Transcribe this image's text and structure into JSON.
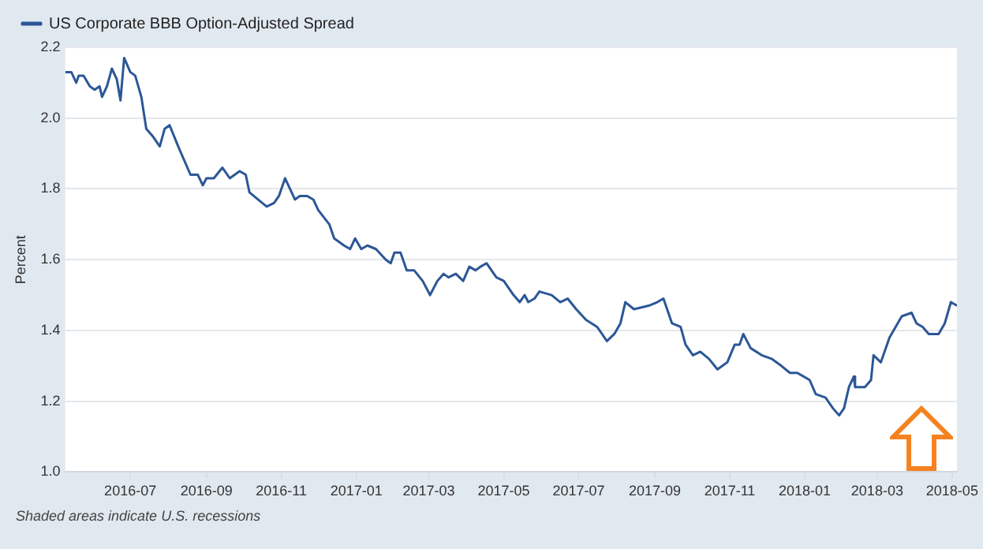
{
  "chart_data": {
    "type": "line",
    "ylabel": "Percent",
    "legend": "top left",
    "grid": "y",
    "annotations": [
      "Shaded areas indicate U.S. recessions"
    ],
    "xlim": [
      "2016-05-09",
      "2018-05-05"
    ],
    "xticks": [
      "2016-07",
      "2016-09",
      "2016-11",
      "2017-01",
      "2017-03",
      "2017-05",
      "2017-07",
      "2017-09",
      "2017-11",
      "2018-01",
      "2018-03",
      "2018-05"
    ],
    "ylim": [
      1.0,
      2.2
    ],
    "yticks": [
      {
        "value": 1,
        "label": "1.0"
      },
      1.2,
      1.4,
      1.6,
      1.8,
      {
        "value": 2,
        "label": "2.0"
      },
      2.2
    ],
    "x": [
      "2016-05-09",
      "2016-05-14",
      "2016-05-18",
      "2016-05-20",
      "2016-05-24",
      "2016-05-29",
      "2016-06-02",
      "2016-06-06",
      "2016-06-08",
      "2016-06-12",
      "2016-06-16",
      "2016-06-20",
      "2016-06-23",
      "2016-06-26",
      "2016-07-01",
      "2016-07-05",
      "2016-07-10",
      "2016-07-14",
      "2016-07-19",
      "2016-07-25",
      "2016-07-29",
      "2016-08-02",
      "2016-08-09",
      "2016-08-19",
      "2016-08-25",
      "2016-08-29",
      "2016-09-01",
      "2016-09-07",
      "2016-09-14",
      "2016-09-20",
      "2016-09-28",
      "2016-10-03",
      "2016-10-06",
      "2016-10-13",
      "2016-10-20",
      "2016-10-26",
      "2016-10-30",
      "2016-11-04",
      "2016-11-08",
      "2016-11-12",
      "2016-11-16",
      "2016-11-22",
      "2016-11-27",
      "2016-12-01",
      "2016-12-10",
      "2016-12-14",
      "2016-12-22",
      "2016-12-27",
      "2016-12-31",
      "2017-01-05",
      "2017-01-10",
      "2017-01-17",
      "2017-01-25",
      "2017-01-29",
      "2017-02-01",
      "2017-02-06",
      "2017-02-11",
      "2017-02-17",
      "2017-02-24",
      "2017-03-02",
      "2017-03-08",
      "2017-03-13",
      "2017-03-17",
      "2017-03-23",
      "2017-03-29",
      "2017-04-03",
      "2017-04-08",
      "2017-04-12",
      "2017-04-17",
      "2017-04-25",
      "2017-05-01",
      "2017-05-09",
      "2017-05-14",
      "2017-05-18",
      "2017-05-21",
      "2017-05-26",
      "2017-05-30",
      "2017-06-09",
      "2017-06-16",
      "2017-06-22",
      "2017-06-29",
      "2017-07-07",
      "2017-07-16",
      "2017-07-24",
      "2017-07-30",
      "2017-08-04",
      "2017-08-08",
      "2017-08-15",
      "2017-08-27",
      "2017-09-03",
      "2017-09-08",
      "2017-09-15",
      "2017-09-22",
      "2017-09-26",
      "2017-10-02",
      "2017-10-08",
      "2017-10-15",
      "2017-10-22",
      "2017-10-30",
      "2017-11-05",
      "2017-11-09",
      "2017-11-12",
      "2017-11-18",
      "2017-11-27",
      "2017-12-05",
      "2017-12-13",
      "2017-12-20",
      "2017-12-26",
      "2018-01-05",
      "2018-01-10",
      "2018-01-18",
      "2018-01-24",
      "2018-01-29",
      "2018-02-02",
      "2018-02-06",
      "2018-02-10",
      "2018-02-11",
      "2018-02-19",
      "2018-02-24",
      "2018-02-26",
      "2018-03-04",
      "2018-03-11",
      "2018-03-16",
      "2018-03-21",
      "2018-03-29",
      "2018-04-02",
      "2018-04-07",
      "2018-04-12",
      "2018-04-20",
      "2018-04-25",
      "2018-04-30",
      "2018-05-05"
    ],
    "series": [
      {
        "name": "US Corporate BBB Option-Adjusted Spread",
        "color": "#2c5796",
        "values": [
          2.13,
          2.13,
          2.1,
          2.12,
          2.12,
          2.09,
          2.08,
          2.09,
          2.06,
          2.09,
          2.14,
          2.11,
          2.05,
          2.17,
          2.13,
          2.12,
          2.06,
          1.97,
          1.95,
          1.92,
          1.97,
          1.98,
          1.92,
          1.84,
          1.84,
          1.81,
          1.83,
          1.83,
          1.86,
          1.83,
          1.85,
          1.84,
          1.79,
          1.77,
          1.75,
          1.76,
          1.78,
          1.83,
          1.8,
          1.77,
          1.78,
          1.78,
          1.77,
          1.74,
          1.7,
          1.66,
          1.64,
          1.63,
          1.66,
          1.63,
          1.64,
          1.63,
          1.6,
          1.59,
          1.62,
          1.62,
          1.57,
          1.57,
          1.54,
          1.5,
          1.54,
          1.56,
          1.55,
          1.56,
          1.54,
          1.58,
          1.57,
          1.58,
          1.59,
          1.55,
          1.54,
          1.5,
          1.48,
          1.5,
          1.48,
          1.49,
          1.51,
          1.5,
          1.48,
          1.49,
          1.46,
          1.43,
          1.41,
          1.37,
          1.39,
          1.42,
          1.48,
          1.46,
          1.47,
          1.48,
          1.49,
          1.42,
          1.41,
          1.36,
          1.33,
          1.34,
          1.32,
          1.29,
          1.31,
          1.36,
          1.36,
          1.39,
          1.35,
          1.33,
          1.32,
          1.3,
          1.28,
          1.28,
          1.26,
          1.22,
          1.21,
          1.18,
          1.16,
          1.18,
          1.24,
          1.27,
          1.24,
          1.24,
          1.26,
          1.33,
          1.31,
          1.38,
          1.41,
          1.44,
          1.45,
          1.42,
          1.41,
          1.39,
          1.39,
          1.42,
          1.48,
          1.47
        ]
      }
    ]
  }
}
